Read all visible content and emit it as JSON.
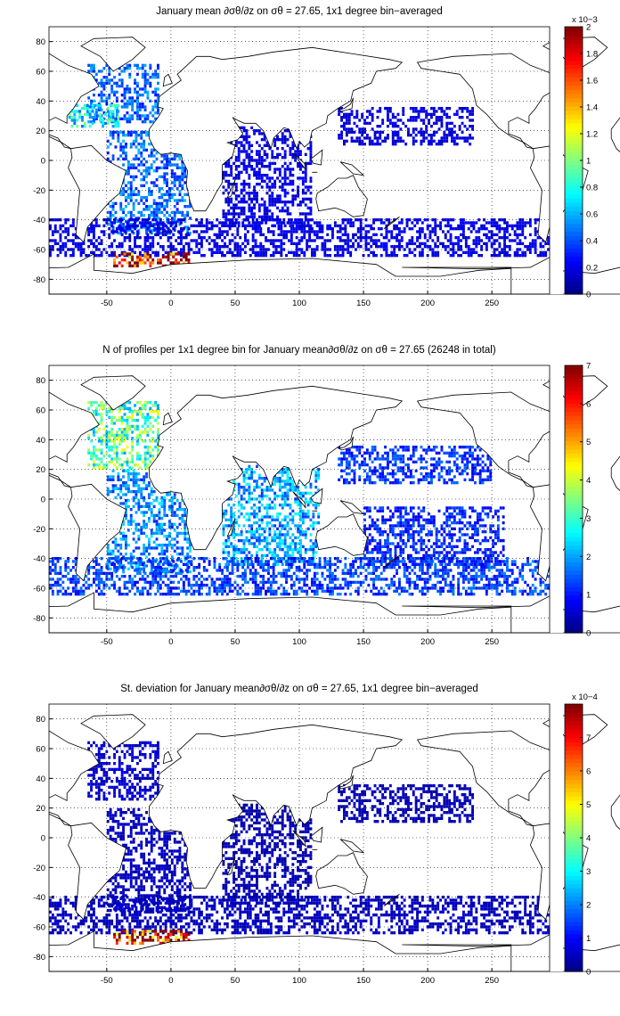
{
  "chart_data": [
    {
      "type": "heatmap",
      "title": "January mean ∂σθ/∂z on σθ = 27.65, 1x1 degree bin−averaged",
      "xticks": [
        -50,
        0,
        50,
        100,
        150,
        200,
        250
      ],
      "yticks": [
        -80,
        -60,
        -40,
        -20,
        0,
        20,
        40,
        60,
        80
      ],
      "xlim": [
        -95,
        295
      ],
      "ylim": [
        -90,
        90
      ],
      "colorbar": {
        "ticks": [
          "0",
          "0.2",
          "0.4",
          "0.6",
          "0.8",
          "1",
          "1.2",
          "1.4",
          "1.6",
          "1.8",
          "2"
        ],
        "max": 2,
        "exponent": "x 10−3"
      },
      "colormap": "jet",
      "grid": "dotted",
      "coverage": [
        {
          "region": "North Atlantic",
          "lon": [
            -65,
            -10
          ],
          "lat": [
            25,
            65
          ],
          "level": 0.45
        },
        {
          "region": "Gulf Stream",
          "lon": [
            -80,
            -40
          ],
          "lat": [
            22,
            38
          ],
          "level": 0.72
        },
        {
          "region": "South Atlantic",
          "lon": [
            -50,
            15
          ],
          "lat": [
            -50,
            20
          ],
          "level": 0.45
        },
        {
          "region": "Indian Ocean",
          "lon": [
            40,
            110
          ],
          "lat": [
            -45,
            22
          ],
          "level": 0.2
        },
        {
          "region": "Southern Ocean",
          "lon": [
            -95,
            295
          ],
          "lat": [
            -65,
            -40
          ],
          "level": 0.2
        },
        {
          "region": "North Pacific",
          "lon": [
            130,
            235
          ],
          "lat": [
            10,
            35
          ],
          "level": 0.18
        },
        {
          "region": "Weddell Sea",
          "lon": [
            -45,
            15
          ],
          "lat": [
            -72,
            -62
          ],
          "level": 1.9
        }
      ]
    },
    {
      "type": "heatmap",
      "title": "N of profiles per 1x1 degree bin for January mean∂σθ/∂z on σθ = 27.65 (26248 in total)",
      "xticks": [
        -50,
        0,
        50,
        100,
        150,
        200,
        250
      ],
      "yticks": [
        -80,
        -60,
        -40,
        -20,
        0,
        20,
        40,
        60,
        80
      ],
      "xlim": [
        -95,
        295
      ],
      "ylim": [
        -90,
        90
      ],
      "colorbar": {
        "ticks": [
          "0",
          "1",
          "2",
          "3",
          "4",
          "5",
          "6",
          "7"
        ],
        "max": 7,
        "exponent": ""
      },
      "colormap": "jet",
      "grid": "dotted",
      "coverage": [
        {
          "region": "North Atlantic",
          "lon": [
            -65,
            -10
          ],
          "lat": [
            20,
            65
          ],
          "level": 3.2
        },
        {
          "region": "South Atlantic",
          "lon": [
            -50,
            15
          ],
          "lat": [
            -50,
            20
          ],
          "level": 1.8
        },
        {
          "region": "Indian Ocean",
          "lon": [
            40,
            115
          ],
          "lat": [
            -45,
            22
          ],
          "level": 2.0
        },
        {
          "region": "Southern Ocean",
          "lon": [
            -95,
            295
          ],
          "lat": [
            -65,
            -40
          ],
          "level": 1.3
        },
        {
          "region": "North Pacific",
          "lon": [
            130,
            250
          ],
          "lat": [
            10,
            35
          ],
          "level": 1.2
        },
        {
          "region": "South Pacific",
          "lon": [
            150,
            260
          ],
          "lat": [
            -45,
            -5
          ],
          "level": 1.1
        }
      ]
    },
    {
      "type": "heatmap",
      "title": "St. deviation for January mean∂σθ/∂z on σθ = 27.65, 1x1 degree bin−averaged",
      "xticks": [
        -50,
        0,
        50,
        100,
        150,
        200,
        250
      ],
      "yticks": [
        -80,
        -60,
        -40,
        -20,
        0,
        20,
        40,
        60,
        80
      ],
      "xlim": [
        -95,
        295
      ],
      "ylim": [
        -90,
        90
      ],
      "colorbar": {
        "ticks": [
          "0",
          "1",
          "2",
          "3",
          "4",
          "5",
          "6",
          "7"
        ],
        "max": 8,
        "exponent": "x 10−4"
      },
      "colormap": "jet",
      "grid": "dotted",
      "coverage": [
        {
          "region": "North Atlantic",
          "lon": [
            -65,
            -10
          ],
          "lat": [
            25,
            65
          ],
          "level": 0.6
        },
        {
          "region": "South Atlantic",
          "lon": [
            -50,
            15
          ],
          "lat": [
            -50,
            20
          ],
          "level": 0.5
        },
        {
          "region": "Indian Ocean",
          "lon": [
            40,
            110
          ],
          "lat": [
            -45,
            22
          ],
          "level": 0.4
        },
        {
          "region": "Southern Ocean",
          "lon": [
            -95,
            295
          ],
          "lat": [
            -65,
            -40
          ],
          "level": 0.5
        },
        {
          "region": "North Pacific",
          "lon": [
            130,
            235
          ],
          "lat": [
            10,
            35
          ],
          "level": 0.4
        },
        {
          "region": "Weddell Sea",
          "lon": [
            -45,
            15
          ],
          "lat": [
            -72,
            -62
          ],
          "level": 7.5
        }
      ]
    }
  ]
}
